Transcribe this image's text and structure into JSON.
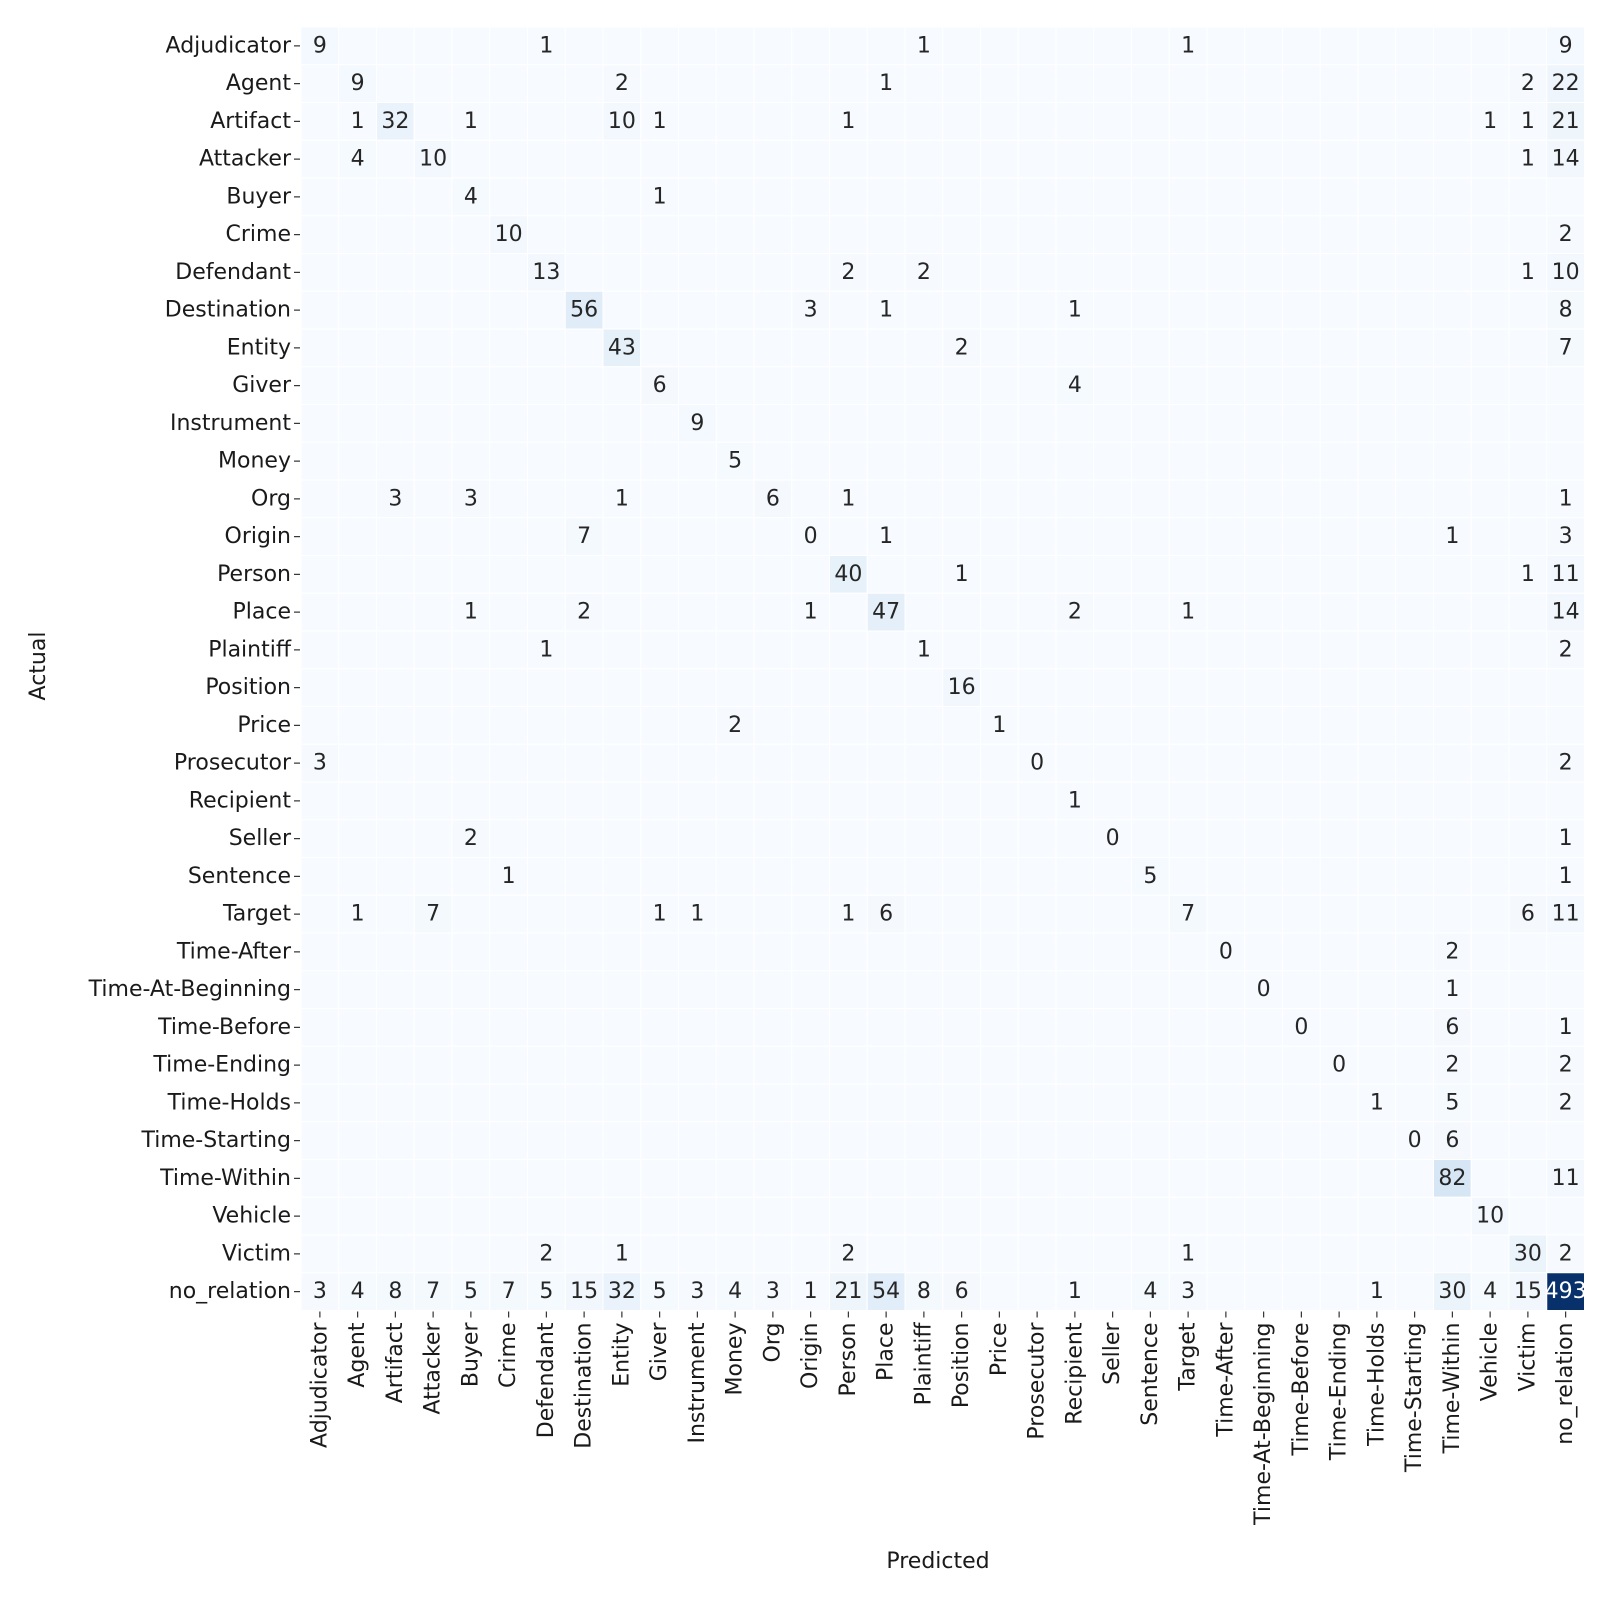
{
  "chart_data": {
    "type": "heatmap",
    "title": "",
    "xlabel": "Predicted",
    "ylabel": "Actual",
    "colormap": "Blues",
    "color_low": "#f7fbff",
    "color_high": "#08306b",
    "value_range": [
      0,
      493
    ],
    "labels": [
      "Adjudicator",
      "Agent",
      "Artifact",
      "Attacker",
      "Buyer",
      "Crime",
      "Defendant",
      "Destination",
      "Entity",
      "Giver",
      "Instrument",
      "Money",
      "Org",
      "Origin",
      "Person",
      "Place",
      "Plaintiff",
      "Position",
      "Price",
      "Prosecutor",
      "Recipient",
      "Seller",
      "Sentence",
      "Target",
      "Time-After",
      "Time-At-Beginning",
      "Time-Before",
      "Time-Ending",
      "Time-Holds",
      "Time-Starting",
      "Time-Within",
      "Vehicle",
      "Victim",
      "no_relation"
    ],
    "cells": [
      {
        "actual": "Adjudicator",
        "predicted": "Adjudicator",
        "value": 9
      },
      {
        "actual": "Adjudicator",
        "predicted": "Defendant",
        "value": 1
      },
      {
        "actual": "Adjudicator",
        "predicted": "Plaintiff",
        "value": 1
      },
      {
        "actual": "Adjudicator",
        "predicted": "Target",
        "value": 1
      },
      {
        "actual": "Adjudicator",
        "predicted": "no_relation",
        "value": 9
      },
      {
        "actual": "Agent",
        "predicted": "Agent",
        "value": 9
      },
      {
        "actual": "Agent",
        "predicted": "Entity",
        "value": 2
      },
      {
        "actual": "Agent",
        "predicted": "Place",
        "value": 1
      },
      {
        "actual": "Agent",
        "predicted": "Victim",
        "value": 2
      },
      {
        "actual": "Agent",
        "predicted": "no_relation",
        "value": 22
      },
      {
        "actual": "Artifact",
        "predicted": "Agent",
        "value": 1
      },
      {
        "actual": "Artifact",
        "predicted": "Artifact",
        "value": 32
      },
      {
        "actual": "Artifact",
        "predicted": "Buyer",
        "value": 1
      },
      {
        "actual": "Artifact",
        "predicted": "Entity",
        "value": 10
      },
      {
        "actual": "Artifact",
        "predicted": "Giver",
        "value": 1
      },
      {
        "actual": "Artifact",
        "predicted": "Person",
        "value": 1
      },
      {
        "actual": "Artifact",
        "predicted": "Vehicle",
        "value": 1
      },
      {
        "actual": "Artifact",
        "predicted": "Victim",
        "value": 1
      },
      {
        "actual": "Artifact",
        "predicted": "no_relation",
        "value": 21
      },
      {
        "actual": "Attacker",
        "predicted": "Agent",
        "value": 4
      },
      {
        "actual": "Attacker",
        "predicted": "Attacker",
        "value": 10
      },
      {
        "actual": "Attacker",
        "predicted": "Victim",
        "value": 1
      },
      {
        "actual": "Attacker",
        "predicted": "no_relation",
        "value": 14
      },
      {
        "actual": "Buyer",
        "predicted": "Buyer",
        "value": 4
      },
      {
        "actual": "Buyer",
        "predicted": "Giver",
        "value": 1
      },
      {
        "actual": "Crime",
        "predicted": "Crime",
        "value": 10
      },
      {
        "actual": "Crime",
        "predicted": "no_relation",
        "value": 2
      },
      {
        "actual": "Defendant",
        "predicted": "Defendant",
        "value": 13
      },
      {
        "actual": "Defendant",
        "predicted": "Person",
        "value": 2
      },
      {
        "actual": "Defendant",
        "predicted": "Plaintiff",
        "value": 2
      },
      {
        "actual": "Defendant",
        "predicted": "Victim",
        "value": 1
      },
      {
        "actual": "Defendant",
        "predicted": "no_relation",
        "value": 10
      },
      {
        "actual": "Destination",
        "predicted": "Destination",
        "value": 56
      },
      {
        "actual": "Destination",
        "predicted": "Origin",
        "value": 3
      },
      {
        "actual": "Destination",
        "predicted": "Place",
        "value": 1
      },
      {
        "actual": "Destination",
        "predicted": "Recipient",
        "value": 1
      },
      {
        "actual": "Destination",
        "predicted": "no_relation",
        "value": 8
      },
      {
        "actual": "Entity",
        "predicted": "Entity",
        "value": 43
      },
      {
        "actual": "Entity",
        "predicted": "Position",
        "value": 2
      },
      {
        "actual": "Entity",
        "predicted": "no_relation",
        "value": 7
      },
      {
        "actual": "Giver",
        "predicted": "Giver",
        "value": 6
      },
      {
        "actual": "Giver",
        "predicted": "Recipient",
        "value": 4
      },
      {
        "actual": "Instrument",
        "predicted": "Instrument",
        "value": 9
      },
      {
        "actual": "Money",
        "predicted": "Money",
        "value": 5
      },
      {
        "actual": "Org",
        "predicted": "Artifact",
        "value": 3
      },
      {
        "actual": "Org",
        "predicted": "Buyer",
        "value": 3
      },
      {
        "actual": "Org",
        "predicted": "Entity",
        "value": 1
      },
      {
        "actual": "Org",
        "predicted": "Org",
        "value": 6
      },
      {
        "actual": "Org",
        "predicted": "Person",
        "value": 1
      },
      {
        "actual": "Org",
        "predicted": "no_relation",
        "value": 1
      },
      {
        "actual": "Origin",
        "predicted": "Destination",
        "value": 7
      },
      {
        "actual": "Origin",
        "predicted": "Origin",
        "value": 0
      },
      {
        "actual": "Origin",
        "predicted": "Place",
        "value": 1
      },
      {
        "actual": "Origin",
        "predicted": "Time-Within",
        "value": 1
      },
      {
        "actual": "Origin",
        "predicted": "no_relation",
        "value": 3
      },
      {
        "actual": "Person",
        "predicted": "Person",
        "value": 40
      },
      {
        "actual": "Person",
        "predicted": "Position",
        "value": 1
      },
      {
        "actual": "Person",
        "predicted": "Victim",
        "value": 1
      },
      {
        "actual": "Person",
        "predicted": "no_relation",
        "value": 11
      },
      {
        "actual": "Place",
        "predicted": "Buyer",
        "value": 1
      },
      {
        "actual": "Place",
        "predicted": "Destination",
        "value": 2
      },
      {
        "actual": "Place",
        "predicted": "Origin",
        "value": 1
      },
      {
        "actual": "Place",
        "predicted": "Place",
        "value": 47
      },
      {
        "actual": "Place",
        "predicted": "Recipient",
        "value": 2
      },
      {
        "actual": "Place",
        "predicted": "Target",
        "value": 1
      },
      {
        "actual": "Place",
        "predicted": "no_relation",
        "value": 14
      },
      {
        "actual": "Plaintiff",
        "predicted": "Defendant",
        "value": 1
      },
      {
        "actual": "Plaintiff",
        "predicted": "Plaintiff",
        "value": 1
      },
      {
        "actual": "Plaintiff",
        "predicted": "no_relation",
        "value": 2
      },
      {
        "actual": "Position",
        "predicted": "Position",
        "value": 16
      },
      {
        "actual": "Price",
        "predicted": "Money",
        "value": 2
      },
      {
        "actual": "Price",
        "predicted": "Price",
        "value": 1
      },
      {
        "actual": "Prosecutor",
        "predicted": "Adjudicator",
        "value": 3
      },
      {
        "actual": "Prosecutor",
        "predicted": "Prosecutor",
        "value": 0
      },
      {
        "actual": "Prosecutor",
        "predicted": "no_relation",
        "value": 2
      },
      {
        "actual": "Recipient",
        "predicted": "Recipient",
        "value": 1
      },
      {
        "actual": "Seller",
        "predicted": "Buyer",
        "value": 2
      },
      {
        "actual": "Seller",
        "predicted": "Seller",
        "value": 0
      },
      {
        "actual": "Seller",
        "predicted": "no_relation",
        "value": 1
      },
      {
        "actual": "Sentence",
        "predicted": "Crime",
        "value": 1
      },
      {
        "actual": "Sentence",
        "predicted": "Sentence",
        "value": 5
      },
      {
        "actual": "Sentence",
        "predicted": "no_relation",
        "value": 1
      },
      {
        "actual": "Target",
        "predicted": "Agent",
        "value": 1
      },
      {
        "actual": "Target",
        "predicted": "Attacker",
        "value": 7
      },
      {
        "actual": "Target",
        "predicted": "Giver",
        "value": 1
      },
      {
        "actual": "Target",
        "predicted": "Instrument",
        "value": 1
      },
      {
        "actual": "Target",
        "predicted": "Person",
        "value": 1
      },
      {
        "actual": "Target",
        "predicted": "Place",
        "value": 6
      },
      {
        "actual": "Target",
        "predicted": "Target",
        "value": 7
      },
      {
        "actual": "Target",
        "predicted": "Victim",
        "value": 6
      },
      {
        "actual": "Target",
        "predicted": "no_relation",
        "value": 11
      },
      {
        "actual": "Time-After",
        "predicted": "Time-After",
        "value": 0
      },
      {
        "actual": "Time-After",
        "predicted": "Time-Within",
        "value": 2
      },
      {
        "actual": "Time-At-Beginning",
        "predicted": "Time-At-Beginning",
        "value": 0
      },
      {
        "actual": "Time-At-Beginning",
        "predicted": "Time-Within",
        "value": 1
      },
      {
        "actual": "Time-Before",
        "predicted": "Time-Before",
        "value": 0
      },
      {
        "actual": "Time-Before",
        "predicted": "Time-Within",
        "value": 6
      },
      {
        "actual": "Time-Before",
        "predicted": "no_relation",
        "value": 1
      },
      {
        "actual": "Time-Ending",
        "predicted": "Time-Ending",
        "value": 0
      },
      {
        "actual": "Time-Ending",
        "predicted": "Time-Within",
        "value": 2
      },
      {
        "actual": "Time-Ending",
        "predicted": "no_relation",
        "value": 2
      },
      {
        "actual": "Time-Holds",
        "predicted": "Time-Holds",
        "value": 1
      },
      {
        "actual": "Time-Holds",
        "predicted": "Time-Within",
        "value": 5
      },
      {
        "actual": "Time-Holds",
        "predicted": "no_relation",
        "value": 2
      },
      {
        "actual": "Time-Starting",
        "predicted": "Time-Starting",
        "value": 0
      },
      {
        "actual": "Time-Starting",
        "predicted": "Time-Within",
        "value": 6
      },
      {
        "actual": "Time-Within",
        "predicted": "Time-Within",
        "value": 82
      },
      {
        "actual": "Time-Within",
        "predicted": "no_relation",
        "value": 11
      },
      {
        "actual": "Vehicle",
        "predicted": "Vehicle",
        "value": 10
      },
      {
        "actual": "Victim",
        "predicted": "Defendant",
        "value": 2
      },
      {
        "actual": "Victim",
        "predicted": "Entity",
        "value": 1
      },
      {
        "actual": "Victim",
        "predicted": "Person",
        "value": 2
      },
      {
        "actual": "Victim",
        "predicted": "Target",
        "value": 1
      },
      {
        "actual": "Victim",
        "predicted": "Victim",
        "value": 30
      },
      {
        "actual": "Victim",
        "predicted": "no_relation",
        "value": 2
      },
      {
        "actual": "no_relation",
        "predicted": "Adjudicator",
        "value": 3
      },
      {
        "actual": "no_relation",
        "predicted": "Agent",
        "value": 4
      },
      {
        "actual": "no_relation",
        "predicted": "Artifact",
        "value": 8
      },
      {
        "actual": "no_relation",
        "predicted": "Attacker",
        "value": 7
      },
      {
        "actual": "no_relation",
        "predicted": "Buyer",
        "value": 5
      },
      {
        "actual": "no_relation",
        "predicted": "Crime",
        "value": 7
      },
      {
        "actual": "no_relation",
        "predicted": "Defendant",
        "value": 5
      },
      {
        "actual": "no_relation",
        "predicted": "Destination",
        "value": 15
      },
      {
        "actual": "no_relation",
        "predicted": "Entity",
        "value": 32
      },
      {
        "actual": "no_relation",
        "predicted": "Giver",
        "value": 5
      },
      {
        "actual": "no_relation",
        "predicted": "Instrument",
        "value": 3
      },
      {
        "actual": "no_relation",
        "predicted": "Money",
        "value": 4
      },
      {
        "actual": "no_relation",
        "predicted": "Org",
        "value": 3
      },
      {
        "actual": "no_relation",
        "predicted": "Origin",
        "value": 1
      },
      {
        "actual": "no_relation",
        "predicted": "Person",
        "value": 21
      },
      {
        "actual": "no_relation",
        "predicted": "Place",
        "value": 54
      },
      {
        "actual": "no_relation",
        "predicted": "Plaintiff",
        "value": 8
      },
      {
        "actual": "no_relation",
        "predicted": "Position",
        "value": 6
      },
      {
        "actual": "no_relation",
        "predicted": "Recipient",
        "value": 1
      },
      {
        "actual": "no_relation",
        "predicted": "Sentence",
        "value": 4
      },
      {
        "actual": "no_relation",
        "predicted": "Target",
        "value": 3
      },
      {
        "actual": "no_relation",
        "predicted": "Time-Holds",
        "value": 1
      },
      {
        "actual": "no_relation",
        "predicted": "Time-Within",
        "value": 30
      },
      {
        "actual": "no_relation",
        "predicted": "Vehicle",
        "value": 4
      },
      {
        "actual": "no_relation",
        "predicted": "Victim",
        "value": 15
      },
      {
        "actual": "no_relation",
        "predicted": "no_relation",
        "value": 493
      }
    ]
  }
}
